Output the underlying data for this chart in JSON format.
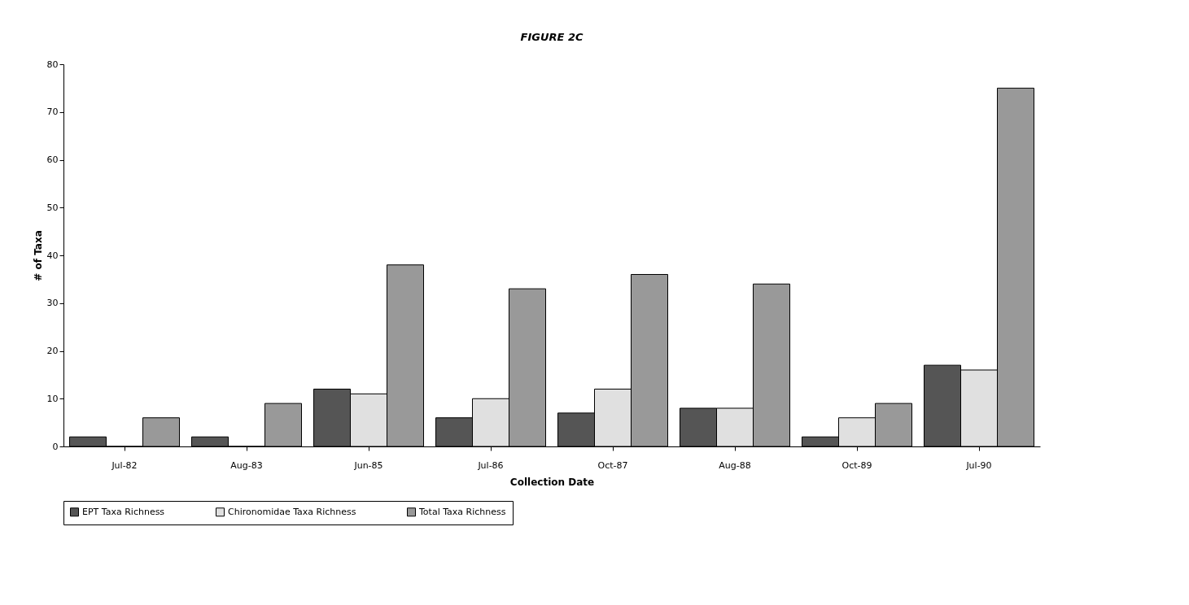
{
  "chart_data": {
    "type": "bar",
    "title": "FIGURE 2C",
    "xlabel": "Collection Date",
    "ylabel": "# of Taxa",
    "categories": [
      "Jul-82",
      "Aug-83",
      "Jun-85",
      "Jul-86",
      "Oct-87",
      "Aug-88",
      "Oct-89",
      "Jul-90"
    ],
    "series": [
      {
        "name": "EPT Taxa Richness",
        "color": "#555555",
        "values": [
          2,
          2,
          12,
          6,
          7,
          8,
          2,
          17
        ]
      },
      {
        "name": "Chironomidae Taxa Richness",
        "color": "#e0e0e0",
        "values": [
          0,
          0,
          11,
          10,
          12,
          8,
          6,
          16
        ]
      },
      {
        "name": "Total Taxa Richness",
        "color": "#999999",
        "values": [
          6,
          9,
          38,
          33,
          36,
          34,
          9,
          75
        ]
      }
    ],
    "ylim": [
      0,
      80
    ],
    "yticks": [
      0,
      10,
      20,
      30,
      40,
      50,
      60,
      70,
      80
    ],
    "grid": false,
    "legend": "bottom"
  }
}
